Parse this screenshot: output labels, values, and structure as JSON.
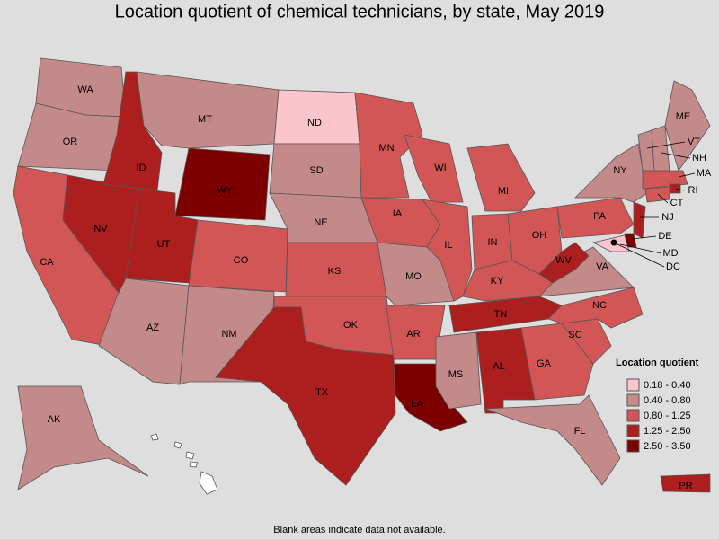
{
  "title": "Location quotient of chemical technicians, by state, May 2019",
  "footnote": "Blank areas indicate data not available.",
  "legend": {
    "title": "Location quotient",
    "classes": [
      {
        "label": "0.18 - 0.40",
        "color": "#fcc5cb"
      },
      {
        "label": "0.40 - 0.80",
        "color": "#c48a8a"
      },
      {
        "label": "0.80 - 1.25",
        "color": "#d25656"
      },
      {
        "label": "1.25 - 2.50",
        "color": "#ad1e1e"
      },
      {
        "label": "2.50 - 3.50",
        "color": "#7d0000"
      }
    ]
  },
  "states": [
    {
      "label": "WA",
      "class": 1
    },
    {
      "label": "OR",
      "class": 1
    },
    {
      "label": "CA",
      "class": 2
    },
    {
      "label": "NV",
      "class": 3
    },
    {
      "label": "ID",
      "class": 3
    },
    {
      "label": "MT",
      "class": 1
    },
    {
      "label": "WY",
      "class": 4
    },
    {
      "label": "UT",
      "class": 3
    },
    {
      "label": "AZ",
      "class": 1
    },
    {
      "label": "CO",
      "class": 2
    },
    {
      "label": "NM",
      "class": 1
    },
    {
      "label": "ND",
      "class": 0
    },
    {
      "label": "SD",
      "class": 1
    },
    {
      "label": "NE",
      "class": 1
    },
    {
      "label": "KS",
      "class": 2
    },
    {
      "label": "OK",
      "class": 2
    },
    {
      "label": "TX",
      "class": 3
    },
    {
      "label": "MN",
      "class": 2
    },
    {
      "label": "IA",
      "class": 2
    },
    {
      "label": "MO",
      "class": 1
    },
    {
      "label": "AR",
      "class": 2
    },
    {
      "label": "LA",
      "class": 4
    },
    {
      "label": "WI",
      "class": 2
    },
    {
      "label": "IL",
      "class": 2
    },
    {
      "label": "MI",
      "class": 2
    },
    {
      "label": "IN",
      "class": 2
    },
    {
      "label": "OH",
      "class": 2
    },
    {
      "label": "KY",
      "class": 2
    },
    {
      "label": "TN",
      "class": 3
    },
    {
      "label": "MS",
      "class": 1
    },
    {
      "label": "AL",
      "class": 3
    },
    {
      "label": "GA",
      "class": 2
    },
    {
      "label": "FL",
      "class": 1
    },
    {
      "label": "SC",
      "class": 2
    },
    {
      "label": "NC",
      "class": 2
    },
    {
      "label": "VA",
      "class": 1
    },
    {
      "label": "WV",
      "class": 3
    },
    {
      "label": "PA",
      "class": 2
    },
    {
      "label": "NY",
      "class": 1
    },
    {
      "label": "VT",
      "class": 1
    },
    {
      "label": "NH",
      "class": 1
    },
    {
      "label": "ME",
      "class": 1
    },
    {
      "label": "MA",
      "class": 2
    },
    {
      "label": "RI",
      "class": 3
    },
    {
      "label": "CT",
      "class": 2
    },
    {
      "label": "NJ",
      "class": 3
    },
    {
      "label": "DE",
      "class": 4
    },
    {
      "label": "MD",
      "class": 0
    },
    {
      "label": "DC",
      "class": 4
    },
    {
      "label": "AK",
      "class": 1
    },
    {
      "label": "PR",
      "class": 3
    }
  ]
}
